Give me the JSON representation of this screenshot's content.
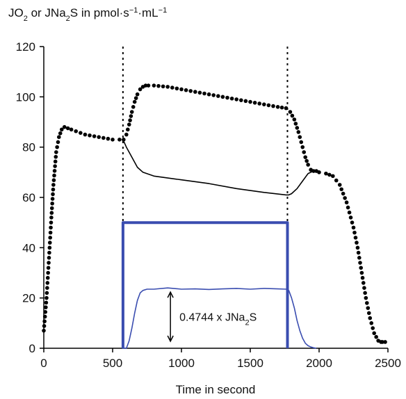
{
  "chart_data": {
    "type": "line",
    "ylabel": {
      "parts": [
        {
          "t": "JO"
        },
        {
          "sub": "2"
        },
        {
          "t": " or JNa"
        },
        {
          "sub": "2"
        },
        {
          "t": "S in pmol·s"
        },
        {
          "sup": "−1"
        },
        {
          "t": "·mL"
        },
        {
          "sup": "−1"
        }
      ]
    },
    "xlabel": "Time in second",
    "xlim": [
      0,
      2500
    ],
    "ylim": [
      0,
      120
    ],
    "xticks": [
      "0",
      "500",
      "1000",
      "1500",
      "2000",
      "2500"
    ],
    "yticks": [
      "0",
      "20",
      "40",
      "60",
      "80",
      "100",
      "120"
    ],
    "annotation": {
      "parts": [
        {
          "t": "0.4744 x JNa"
        },
        {
          "sub": "2"
        },
        {
          "t": "S"
        }
      ],
      "arrow_x": 920,
      "arrow_y": [
        0,
        24
      ]
    },
    "event_markers_x": [
      575,
      1770
    ],
    "series": [
      {
        "style": "dotted-markers",
        "color": "#000000",
        "x": [
          0,
          20,
          40,
          55,
          70,
          90,
          110,
          130,
          150,
          200,
          300,
          400,
          500,
          550,
          580,
          600,
          620,
          640,
          660,
          680,
          700,
          720,
          740,
          760,
          800,
          900,
          1000,
          1100,
          1200,
          1300,
          1400,
          1500,
          1600,
          1700,
          1760,
          1790,
          1820,
          1850,
          1880,
          1900,
          1920,
          1940,
          1960,
          1980,
          2000,
          2050,
          2100,
          2150,
          2200,
          2250,
          2280,
          2310,
          2340,
          2370,
          2400,
          2430,
          2450,
          2460,
          2480
        ],
        "y": [
          7,
          20,
          38,
          52,
          65,
          78,
          84,
          87,
          88,
          87,
          85,
          84,
          83,
          83,
          83,
          85,
          89,
          94,
          98,
          101,
          103,
          104,
          104.5,
          104.5,
          104.5,
          104,
          103,
          102,
          101,
          100,
          99,
          98,
          97,
          96,
          95.5,
          94,
          91,
          86,
          80,
          76,
          73,
          71,
          70.5,
          70.5,
          70,
          69.5,
          68.5,
          65,
          58,
          48,
          40,
          30,
          20,
          12,
          6,
          3,
          2.5,
          2.5,
          2.5
        ]
      },
      {
        "style": "line",
        "color": "#000000",
        "x": [
          575,
          600,
          640,
          680,
          720,
          800,
          1000,
          1200,
          1400,
          1600,
          1760,
          1780,
          1800,
          1840,
          1880,
          1920,
          1960,
          2000
        ],
        "y": [
          83,
          80,
          76,
          72,
          70,
          68.5,
          67,
          65.5,
          63.5,
          62,
          61,
          61,
          61.5,
          63.5,
          66.5,
          69.5,
          70.5,
          70.5
        ]
      },
      {
        "style": "line",
        "color": "#3a4db0",
        "x": [
          570,
          600,
          620,
          640,
          660,
          680,
          700,
          720,
          750,
          800,
          900,
          1000,
          1100,
          1200,
          1300,
          1400,
          1500,
          1600,
          1700,
          1760,
          1780,
          1800,
          1820,
          1840,
          1860,
          1880,
          1900,
          1920,
          1940,
          1960,
          1980
        ],
        "y": [
          0,
          0,
          3,
          8,
          14,
          19,
          22,
          23,
          23.5,
          23.5,
          24,
          23.5,
          23.6,
          23.4,
          23.6,
          23.8,
          23.5,
          23.8,
          23.6,
          23.5,
          23,
          20,
          16,
          11,
          7,
          4,
          2,
          1,
          0.5,
          0.2,
          0
        ]
      },
      {
        "style": "thick-line",
        "color": "#3a4db0",
        "x": [
          575,
          575,
          1770,
          1770
        ],
        "y": [
          0,
          50,
          50,
          0
        ]
      }
    ]
  }
}
